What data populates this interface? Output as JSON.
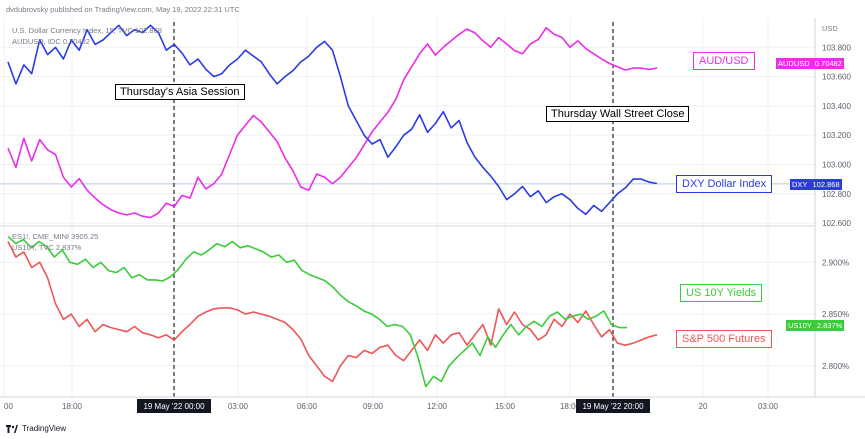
{
  "header": {
    "publisher": "dvdubrovsky published on TradingView.com, May 19, 2022 22:31 UTC"
  },
  "footer": {
    "brand": "TradingView"
  },
  "annotations": {
    "asia_session": "Thursday's Asia Session",
    "wall_street_close": "Thursday Wall Street Close"
  },
  "colors": {
    "dxy": "#2a3ce0",
    "audusd": "#ea2ee8",
    "us10y": "#3acc3a",
    "sp500": "#ee5555",
    "grid": "#eef0f4",
    "axis_text": "#5d606b"
  },
  "chart_data": [
    {
      "type": "line",
      "pane": "top",
      "legend_rows": [
        "U.S. Dollar Currency Index, 15, TVC  102.868",
        "AUDUSD, IDC  0.70482"
      ],
      "unit_label": "USD",
      "ylim_dxy": [
        102.58,
        104.0
      ],
      "yticks": [
        "103.800",
        "103.600",
        "103.400",
        "103.200",
        "103.000",
        "102.800",
        "102.600"
      ],
      "series": [
        {
          "name": "DXY Dollar Index",
          "tag_label": "DXY",
          "last_value": "102.868",
          "values": [
            103.7,
            103.55,
            103.68,
            103.62,
            103.85,
            103.75,
            103.8,
            103.72,
            103.85,
            103.78,
            103.92,
            103.82,
            103.85,
            103.9,
            103.95,
            103.88,
            103.92,
            103.9,
            103.95,
            103.9,
            103.78,
            103.82,
            103.76,
            103.68,
            103.72,
            103.65,
            103.6,
            103.62,
            103.68,
            103.72,
            103.78,
            103.74,
            103.7,
            103.62,
            103.55,
            103.6,
            103.64,
            103.7,
            103.74,
            103.8,
            103.84,
            103.78,
            103.6,
            103.4,
            103.3,
            103.2,
            103.14,
            103.17,
            103.05,
            103.12,
            103.2,
            103.24,
            103.34,
            103.22,
            103.28,
            103.36,
            103.25,
            103.3,
            103.15,
            103.05,
            102.98,
            102.92,
            102.85,
            102.76,
            102.8,
            102.85,
            102.78,
            102.82,
            102.74,
            102.78,
            102.8,
            102.76,
            102.7,
            102.66,
            102.72,
            102.68,
            102.74,
            102.8,
            102.84,
            102.9,
            102.9,
            102.88,
            102.87
          ]
        },
        {
          "name": "AUD/USD",
          "tag_label": "AUDUSD",
          "last_value": "0.70482",
          "values": [
            0.6925,
            0.6895,
            0.694,
            0.6905,
            0.6938,
            0.6922,
            0.6915,
            0.688,
            0.6865,
            0.6878,
            0.686,
            0.6848,
            0.6838,
            0.683,
            0.6825,
            0.6822,
            0.6825,
            0.682,
            0.6818,
            0.6825,
            0.684,
            0.6835,
            0.6852,
            0.6848,
            0.688,
            0.6862,
            0.687,
            0.6885,
            0.6915,
            0.6945,
            0.696,
            0.6975,
            0.6965,
            0.695,
            0.6935,
            0.691,
            0.689,
            0.6865,
            0.686,
            0.6885,
            0.688,
            0.687,
            0.688,
            0.6895,
            0.691,
            0.693,
            0.695,
            0.6965,
            0.698,
            0.7,
            0.703,
            0.705,
            0.707,
            0.7085,
            0.7068,
            0.708,
            0.709,
            0.71,
            0.7108,
            0.7102,
            0.709,
            0.708,
            0.7095,
            0.7085,
            0.7075,
            0.707,
            0.7085,
            0.7092,
            0.711,
            0.71,
            0.7095,
            0.708,
            0.709,
            0.7078,
            0.707,
            0.7062,
            0.7055,
            0.705,
            0.7045,
            0.7048,
            0.7048,
            0.7046,
            0.7048
          ]
        }
      ]
    },
    {
      "type": "line",
      "pane": "bottom",
      "legend_rows": [
        "ES1!, CME_MINI  3905.25",
        "US10Y, TVC  2.837%"
      ],
      "ylim_us10y": [
        2.77,
        2.935
      ],
      "yticks": [
        "2.900%",
        "2.850%",
        "2.800%"
      ],
      "series": [
        {
          "name": "US 10Y Yields",
          "tag_label": "US10Y",
          "last_value": "2.837%",
          "values": [
            2.925,
            2.918,
            2.922,
            2.914,
            2.92,
            2.915,
            2.905,
            2.912,
            2.9,
            2.898,
            2.903,
            2.895,
            2.9,
            2.892,
            2.89,
            2.895,
            2.885,
            2.888,
            2.883,
            2.883,
            2.882,
            2.886,
            2.893,
            2.903,
            2.91,
            2.907,
            2.912,
            2.918,
            2.915,
            2.92,
            2.914,
            2.916,
            2.913,
            2.91,
            2.905,
            2.907,
            2.9,
            2.902,
            2.892,
            2.888,
            2.885,
            2.882,
            2.876,
            2.868,
            2.862,
            2.858,
            2.853,
            2.85,
            2.845,
            2.838,
            2.84,
            2.838,
            2.83,
            2.808,
            2.78,
            2.79,
            2.785,
            2.8,
            2.808,
            2.815,
            2.822,
            2.81,
            2.828,
            2.818,
            2.83,
            2.84,
            2.83,
            2.838,
            2.843,
            2.838,
            2.848,
            2.852,
            2.845,
            2.848,
            2.85,
            2.845,
            2.848,
            2.853,
            2.84,
            2.837,
            2.837
          ]
        },
        {
          "name": "S&P 500 Futures",
          "values": [
            2.92,
            2.905,
            2.91,
            2.895,
            2.9,
            2.885,
            2.86,
            2.845,
            2.85,
            2.838,
            2.845,
            2.833,
            2.84,
            2.837,
            2.835,
            2.833,
            2.838,
            2.832,
            2.83,
            2.827,
            2.83,
            2.825,
            2.833,
            2.84,
            2.848,
            2.852,
            2.855,
            2.856,
            2.856,
            2.854,
            2.85,
            2.852,
            2.85,
            2.848,
            2.845,
            2.842,
            2.835,
            2.826,
            2.81,
            2.8,
            2.79,
            2.785,
            2.8,
            2.81,
            2.808,
            2.815,
            2.812,
            2.818,
            2.82,
            2.81,
            2.805,
            2.815,
            2.825,
            2.815,
            2.83,
            2.822,
            2.83,
            2.832,
            2.82,
            2.83,
            2.84,
            2.82,
            2.855,
            2.84,
            2.852,
            2.84,
            2.835,
            2.825,
            2.83,
            2.845,
            2.838,
            2.85,
            2.842,
            2.853,
            2.84,
            2.828,
            2.835,
            2.822,
            2.82,
            2.822,
            2.825,
            2.828,
            2.83
          ]
        }
      ],
      "sp500_last": "3905.25"
    }
  ],
  "x_axis": {
    "labels": [
      "00",
      "18:00",
      "19 May '22  00:00",
      "03:00",
      "06:00",
      "09:00",
      "12:00",
      "15:00",
      "18:00",
      "19 May '22  20:00",
      "20",
      "03:00"
    ]
  },
  "series_labels": {
    "audusd": "AUD/USD",
    "dxy": "DXY Dollar Index",
    "us10y": "US 10Y Yields",
    "sp500": "S&P 500 Futures"
  }
}
